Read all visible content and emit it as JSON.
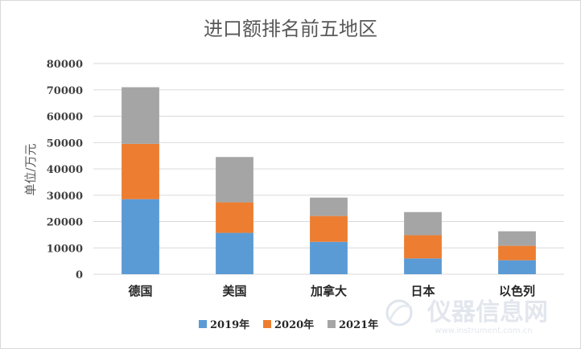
{
  "chart_data": {
    "type": "bar",
    "stacked": true,
    "title": "进口额排名前五地区",
    "ylabel": "单位/万元",
    "xlabel": "",
    "ylim": [
      0,
      80000
    ],
    "yticks": [
      "0",
      "10000",
      "20000",
      "30000",
      "40000",
      "50000",
      "60000",
      "70000",
      "80000"
    ],
    "grid": true,
    "legend_position": "bottom",
    "categories": [
      "德国",
      "美国",
      "加拿大",
      "日本",
      "以色列"
    ],
    "series": [
      {
        "name": "2019年",
        "color": "#5b9bd5",
        "values": [
          28500,
          15700,
          12300,
          6000,
          5300
        ]
      },
      {
        "name": "2020年",
        "color": "#ed7d31",
        "values": [
          21000,
          11600,
          9800,
          8800,
          5500
        ]
      },
      {
        "name": "2021年",
        "color": "#a5a5a5",
        "values": [
          21500,
          17200,
          7000,
          8800,
          5500
        ]
      }
    ]
  },
  "watermark": {
    "brand": "仪器信息网",
    "url": "www.instrument.com.cn"
  }
}
